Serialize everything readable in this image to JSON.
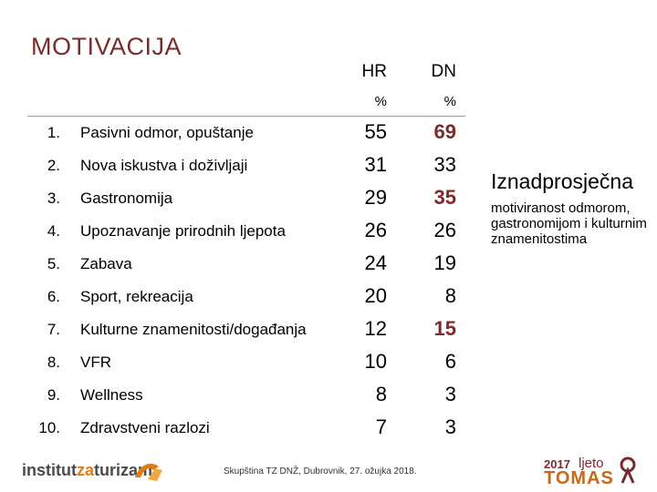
{
  "title": "MOTIVACIJA",
  "columns": {
    "hr": "HR",
    "dn": "DN",
    "hr_unit": "%",
    "dn_unit": "%"
  },
  "rows": [
    {
      "num": "1.",
      "label": "Pasivni odmor, opuštanje",
      "hr": "55",
      "dn": "69",
      "highlight": true
    },
    {
      "num": "2.",
      "label": "Nova iskustva i doživljaji",
      "hr": "31",
      "dn": "33",
      "highlight": false
    },
    {
      "num": "3.",
      "label": "Gastronomija",
      "hr": "29",
      "dn": "35",
      "highlight": true
    },
    {
      "num": "4.",
      "label": "Upoznavanje prirodnih ljepota",
      "hr": "26",
      "dn": "26",
      "highlight": false
    },
    {
      "num": "5.",
      "label": "Zabava",
      "hr": "24",
      "dn": "19",
      "highlight": false
    },
    {
      "num": "6.",
      "label": "Sport, rekreacija",
      "hr": "20",
      "dn": "8",
      "highlight": false
    },
    {
      "num": "7.",
      "label": "Kulturne znamenitosti/događanja",
      "hr": "12",
      "dn": "15",
      "highlight": true
    },
    {
      "num": "8.",
      "label": "VFR",
      "hr": "10",
      "dn": "6",
      "highlight": false
    },
    {
      "num": "9.",
      "label": "Wellness",
      "hr": "8",
      "dn": "3",
      "highlight": false
    },
    {
      "num": "10.",
      "label": "Zdravstveni razlozi",
      "hr": "7",
      "dn": "3",
      "highlight": false
    }
  ],
  "side": {
    "heading": "Iznadprosječna",
    "text": "motiviranost odmorom, gastronomijom i kulturnim znamenitostima"
  },
  "footer": "Skupština TZ DNŽ, Dubrovnik, 27. ožujka 2018.",
  "logos": {
    "left_a": "institut",
    "left_b": "za",
    "left_c": "turizam",
    "right_year": "2017",
    "right_word1": "ljeto",
    "right_word2": "TOMAS"
  },
  "colors": {
    "accent": "#7b2b2b",
    "orange": "#e07d12"
  }
}
